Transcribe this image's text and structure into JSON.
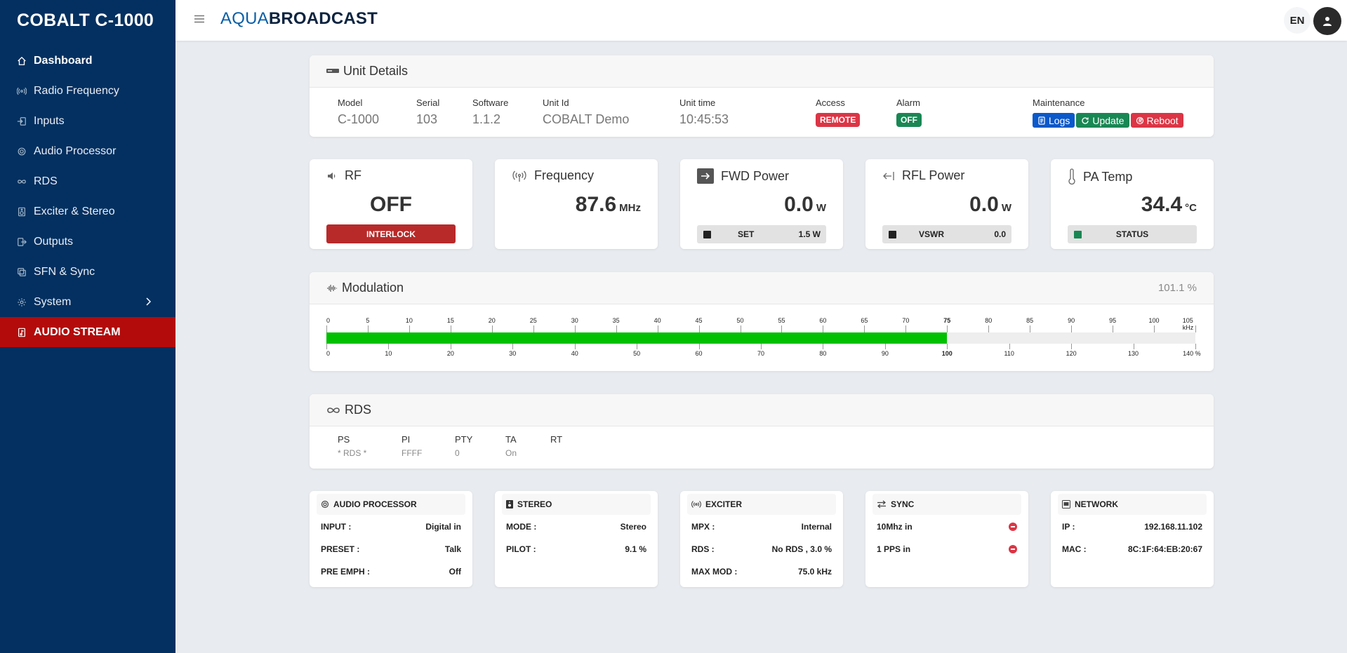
{
  "sidebar": {
    "brand": "COBALT C-1000",
    "items": [
      {
        "label": "Dashboard",
        "icon": "home-icon"
      },
      {
        "label": "Radio Frequency",
        "icon": "antenna-icon"
      },
      {
        "label": "Inputs",
        "icon": "input-icon"
      },
      {
        "label": "Audio Processor",
        "icon": "processor-icon"
      },
      {
        "label": "RDS",
        "icon": "infinity-icon"
      },
      {
        "label": "Exciter & Stereo",
        "icon": "speaker-icon"
      },
      {
        "label": "Outputs",
        "icon": "output-icon"
      },
      {
        "label": "SFN & Sync",
        "icon": "sync-icon"
      },
      {
        "label": "System",
        "icon": "gear-icon"
      },
      {
        "label": "AUDIO STREAM",
        "icon": "stream-icon"
      }
    ]
  },
  "topbar": {
    "logo_a": "AQUA",
    "logo_b": "BROADCAST",
    "lang": "EN"
  },
  "unit_details": {
    "title": "Unit Details",
    "model": {
      "label": "Model",
      "value": "C-1000"
    },
    "serial": {
      "label": "Serial",
      "value": "103"
    },
    "software": {
      "label": "Software",
      "value": "1.1.2"
    },
    "unit_id": {
      "label": "Unit Id",
      "value": "COBALT Demo"
    },
    "unit_time": {
      "label": "Unit time",
      "value": "10:45:53"
    },
    "access": {
      "label": "Access",
      "value": "REMOTE"
    },
    "alarm": {
      "label": "Alarm",
      "value": "OFF"
    },
    "maintenance": {
      "label": "Maintenance",
      "logs": "Logs",
      "update": "Update",
      "reboot": "Reboot"
    }
  },
  "metrics": {
    "rf": {
      "title": "RF",
      "value": "OFF",
      "status": "INTERLOCK"
    },
    "frequency": {
      "title": "Frequency",
      "value": "87.6",
      "unit": "MHz"
    },
    "fwd_power": {
      "title": "FWD Power",
      "value": "0.0",
      "unit": "W",
      "bar_label": "SET",
      "bar_value": "1.5 W"
    },
    "rfl_power": {
      "title": "RFL Power",
      "value": "0.0",
      "unit": "W",
      "bar_label": "VSWR",
      "bar_value": "0.0"
    },
    "pa_temp": {
      "title": "PA Temp",
      "value": "34.4",
      "unit": "°C",
      "bar_label": "STATUS",
      "status_color": "#198754"
    }
  },
  "modulation": {
    "title": "Modulation",
    "value": "101.1 %",
    "level_percent": 100.0,
    "khz_scale": [
      "0",
      "5",
      "10",
      "15",
      "20",
      "25",
      "30",
      "35",
      "40",
      "45",
      "50",
      "55",
      "60",
      "65",
      "70",
      "75",
      "80",
      "85",
      "90",
      "95",
      "100",
      "105 kHz"
    ],
    "pct_scale": [
      "0",
      "10",
      "20",
      "30",
      "40",
      "50",
      "60",
      "70",
      "80",
      "90",
      "100",
      "110",
      "120",
      "130",
      "140 %"
    ],
    "bar_color": "#00c000"
  },
  "rds": {
    "title": "RDS",
    "ps": {
      "label": "PS",
      "value": "* RDS *"
    },
    "pi": {
      "label": "PI",
      "value": "FFFF"
    },
    "pty": {
      "label": "PTY",
      "value": "0"
    },
    "ta": {
      "label": "TA",
      "value": "On"
    },
    "rt": {
      "label": "RT",
      "value": ""
    }
  },
  "info": {
    "audio_processor": {
      "title": "AUDIO PROCESSOR",
      "rows": [
        {
          "label": "INPUT :",
          "value": "Digital in"
        },
        {
          "label": "PRESET :",
          "value": "Talk"
        },
        {
          "label": "PRE EMPH :",
          "value": "Off"
        }
      ]
    },
    "stereo": {
      "title": "STEREO",
      "rows": [
        {
          "label": "MODE :",
          "value": "Stereo"
        },
        {
          "label": "PILOT :",
          "value": "9.1 %"
        }
      ]
    },
    "exciter": {
      "title": "EXCITER",
      "rows": [
        {
          "label": "MPX :",
          "value": "Internal"
        },
        {
          "label": "RDS :",
          "value": "No RDS , 3.0 %"
        },
        {
          "label": "MAX MOD :",
          "value": "75.0 kHz"
        }
      ]
    },
    "sync": {
      "title": "SYNC",
      "rows": [
        {
          "label": "10Mhz in"
        },
        {
          "label": "1 PPS in"
        }
      ]
    },
    "network": {
      "title": "NETWORK",
      "rows": [
        {
          "label": "IP :",
          "value": "192.168.11.102"
        },
        {
          "label": "MAC :",
          "value": "8C:1F:64:EB:20:67"
        }
      ]
    }
  }
}
